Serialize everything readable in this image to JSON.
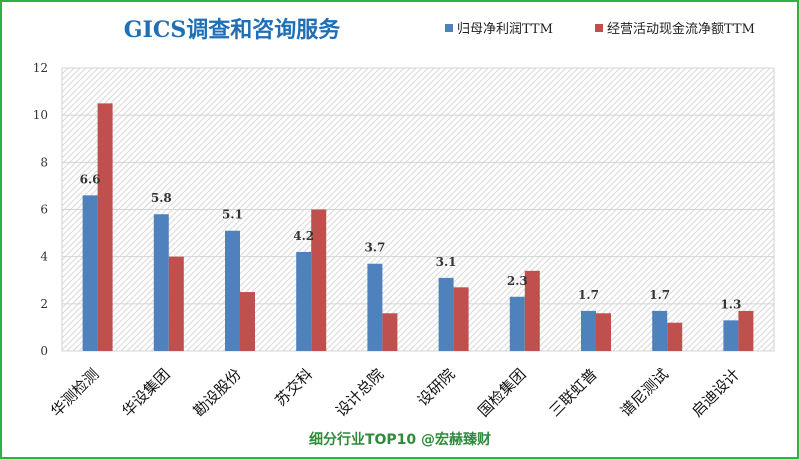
{
  "chart_data": {
    "type": "bar",
    "title": "GICS调查和咨询服务",
    "categories": [
      "华测检测",
      "华设集团",
      "勘设股份",
      "苏交科",
      "设计总院",
      "设研院",
      "国检集团",
      "三联虹普",
      "谱尼测试",
      "启迪设计"
    ],
    "series": [
      {
        "name": "归母净利润TTM",
        "color": "#4f81bd",
        "values": [
          6.6,
          5.8,
          5.1,
          4.2,
          3.7,
          3.1,
          2.3,
          1.7,
          1.7,
          1.3
        ]
      },
      {
        "name": "经营活动现金流净额TTM",
        "color": "#c0504d",
        "values": [
          10.5,
          4.0,
          2.5,
          6.0,
          1.6,
          2.7,
          3.4,
          1.6,
          1.2,
          1.7
        ]
      }
    ],
    "data_labels": [
      "6.6",
      "5.8",
      "5.1",
      "4.2",
      "3.7",
      "3.1",
      "2.3",
      "1.7",
      "1.7",
      "1.3"
    ],
    "yticks": [
      "0",
      "2",
      "4",
      "6",
      "8",
      "10",
      "12"
    ],
    "ylim": [
      0,
      12
    ],
    "grid": true,
    "legend_position": "top-right",
    "footer": "细分行业TOP10 @宏赫臻财",
    "colors": {
      "title": "#1f6fb5",
      "footer": "#2e8b3a",
      "frame": "#2bb34a"
    }
  }
}
